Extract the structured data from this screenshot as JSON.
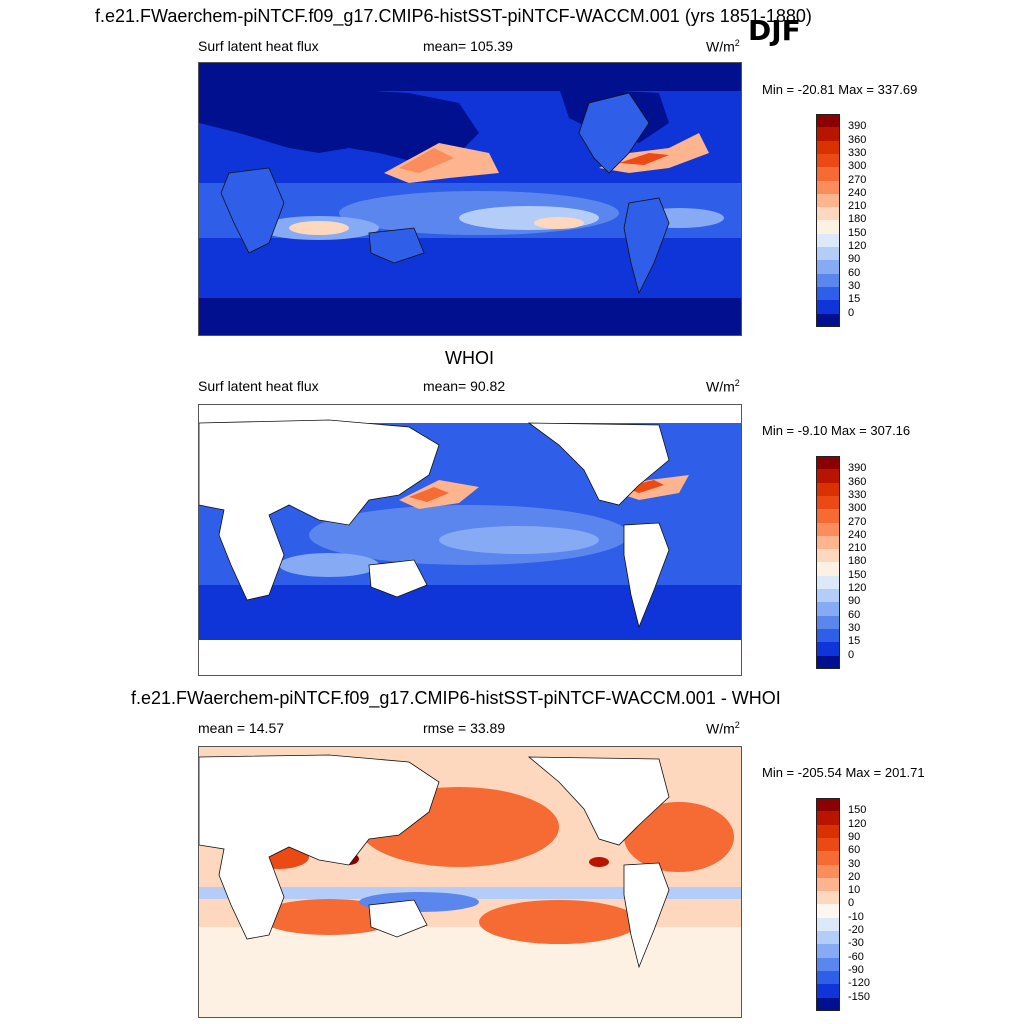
{
  "page": {
    "season": "DJF"
  },
  "panels": [
    {
      "id": "model",
      "title": "f.e21.FWaerchem-piNTCF.f09_g17.CMIP6-histSST-piNTCF-WACCM.001 (yrs 1851-1880)",
      "left": "Surf latent heat flux",
      "center": "mean= 105.39",
      "units": "W/m",
      "units_sup": "2",
      "minmax": "Min = -20.81 Max = 337.69",
      "scale": "abs"
    },
    {
      "id": "obs",
      "title": "WHOI",
      "left": "Surf latent heat flux",
      "center": "mean=  90.82",
      "units": "W/m",
      "units_sup": "2",
      "minmax": "Min =  -9.10 Max = 307.16",
      "scale": "abs"
    },
    {
      "id": "diff",
      "title": "f.e21.FWaerchem-piNTCF.f09_g17.CMIP6-histSST-piNTCF-WACCM.001 - WHOI",
      "left": "mean =  14.57",
      "center": "rmse =  33.89",
      "units": "W/m",
      "units_sup": "2",
      "minmax": "Min = -205.54 Max = 201.71",
      "scale": "diff"
    }
  ],
  "colorbars": {
    "abs": {
      "labels": [
        "390",
        "360",
        "330",
        "300",
        "270",
        "240",
        "210",
        "180",
        "150",
        "120",
        "90",
        "60",
        "30",
        "15",
        "0"
      ],
      "colors": [
        "#8b0000",
        "#b81400",
        "#d93200",
        "#ec4a14",
        "#f66a34",
        "#fb8c5c",
        "#fdb48f",
        "#fed7bf",
        "#fdf1e3",
        "#dbe9fb",
        "#b4cdf8",
        "#86aaf3",
        "#5a86ee",
        "#2f5ee8",
        "#0f35d9",
        "#00108f"
      ]
    },
    "diff": {
      "labels": [
        "150",
        "120",
        "90",
        "60",
        "30",
        "20",
        "10",
        "0",
        "-10",
        "-20",
        "-30",
        "-60",
        "-90",
        "-120",
        "-150"
      ],
      "colors": [
        "#8b0000",
        "#b81400",
        "#d93200",
        "#ec4a14",
        "#f66a34",
        "#fb8c5c",
        "#fdb48f",
        "#fed7bf",
        "#fff6ef",
        "#dbe9fb",
        "#b4cdf8",
        "#86aaf3",
        "#5a86ee",
        "#2f5ee8",
        "#0f35d9",
        "#00108f"
      ]
    }
  }
}
